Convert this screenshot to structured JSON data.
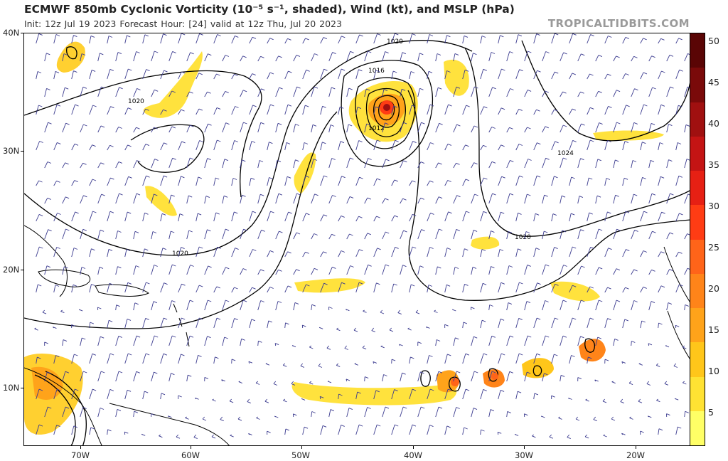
{
  "header": {
    "title": "ECMWF 850mb Cyclonic Vorticity (10⁻⁵ s⁻¹, shaded), Wind (kt), and MSLP (hPa)",
    "subtitle": "Init: 12z Jul 19 2023   Forecast Hour: [24]   valid at 12z Thu, Jul 20 2023",
    "brand": "TROPICALTIDBITS.COM"
  },
  "map": {
    "lat_labels": [
      "40N",
      "30N",
      "20N",
      "10N"
    ],
    "lon_labels": [
      "70W",
      "60W",
      "50W",
      "40W",
      "30W",
      "20W"
    ],
    "isobar_labels": [
      "1020",
      "1016",
      "1012",
      "1020",
      "1024",
      "1020",
      "1020"
    ],
    "wind_barb_color": "#3b3b8f",
    "isobar_color": "#000000"
  },
  "colorbar": {
    "labels": [
      "50",
      "45",
      "40",
      "35",
      "30",
      "25",
      "20",
      "15",
      "10",
      "5"
    ],
    "colors": [
      "#ffff66",
      "#ffe233",
      "#ffc61a",
      "#ffa31a",
      "#ff8419",
      "#ff6419",
      "#ff3c14",
      "#e62014",
      "#c41414",
      "#a01010",
      "#7a0a0a",
      "#5a0505"
    ]
  }
}
